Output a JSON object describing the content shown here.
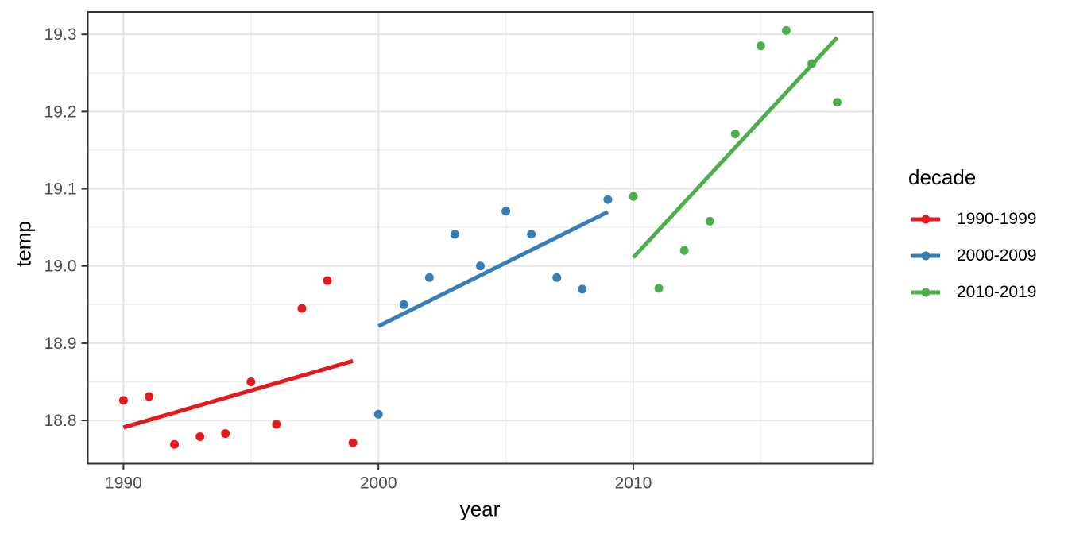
{
  "chart_data": {
    "type": "scatter",
    "title": "",
    "xlabel": "year",
    "ylabel": "temp",
    "xlim": [
      1988.6,
      2019.4
    ],
    "ylim": [
      18.744,
      19.329
    ],
    "x_ticks": [
      1990,
      2000,
      2010
    ],
    "x_tick_labels": [
      "1990",
      "2000",
      "2010"
    ],
    "y_ticks": [
      18.8,
      18.9,
      19.0,
      19.1,
      19.2,
      19.3
    ],
    "y_tick_labels": [
      "18.8",
      "18.9",
      "19.0",
      "19.1",
      "19.2",
      "19.3"
    ],
    "x_minor": [
      1995,
      2005,
      2015
    ],
    "y_minor": [
      18.75,
      18.85,
      18.95,
      19.05,
      19.15,
      19.25
    ],
    "grid": true,
    "legend": {
      "title": "decade",
      "position": "right"
    },
    "series": [
      {
        "name": "1990-1999",
        "color": "#E41A1C",
        "x": [
          1990,
          1991,
          1992,
          1993,
          1994,
          1995,
          1996,
          1997,
          1998,
          1999
        ],
        "y": [
          18.826,
          18.831,
          18.769,
          18.779,
          18.783,
          18.85,
          18.795,
          18.945,
          18.981,
          18.771
        ],
        "trend": {
          "x1": 1990,
          "y1": 18.791,
          "x2": 1999,
          "y2": 18.877
        }
      },
      {
        "name": "2000-2009",
        "color": "#377EB8",
        "x": [
          2000,
          2001,
          2002,
          2003,
          2004,
          2005,
          2006,
          2007,
          2008,
          2009
        ],
        "y": [
          18.808,
          18.95,
          18.985,
          19.041,
          19.0,
          19.071,
          19.041,
          18.985,
          18.97,
          19.086
        ],
        "trend": {
          "x1": 2000,
          "y1": 18.922,
          "x2": 2009,
          "y2": 19.07
        }
      },
      {
        "name": "2010-2019",
        "color": "#4DAF4A",
        "x": [
          2010,
          2011,
          2012,
          2013,
          2014,
          2015,
          2016,
          2017,
          2018
        ],
        "y": [
          19.09,
          18.971,
          19.02,
          19.058,
          19.171,
          19.285,
          19.305,
          19.262,
          19.212
        ],
        "trend": {
          "x1": 2010,
          "y1": 19.011,
          "x2": 2018,
          "y2": 19.296
        }
      }
    ],
    "style": {
      "panel_border_color": "#333333",
      "tick_color": "#333333",
      "tick_label_color": "#4d4d4d",
      "grid_major_color": "#e5e5e5",
      "grid_minor_color": "#f0f0f0",
      "background": "#ffffff"
    }
  }
}
